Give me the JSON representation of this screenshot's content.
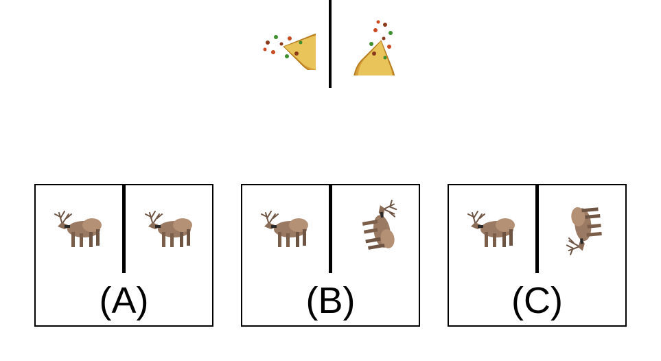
{
  "example": {
    "left_icon": "pizza-icon",
    "right_icon": "pizza-icon-rotated"
  },
  "options": [
    {
      "label": "(A)",
      "left_icon": "deer-icon",
      "right_icon": "deer-icon"
    },
    {
      "label": "(B)",
      "left_icon": "deer-icon",
      "right_icon": "deer-icon-rotated"
    },
    {
      "label": "(C)",
      "left_icon": "deer-icon",
      "right_icon": "deer-icon-flipped-rotated"
    }
  ],
  "colors": {
    "line": "#000000",
    "pizza_crust": "#d9a03a",
    "pizza_cheese": "#e8c45a",
    "deer_body": "#9a7a63",
    "deer_dark": "#6e5443"
  }
}
